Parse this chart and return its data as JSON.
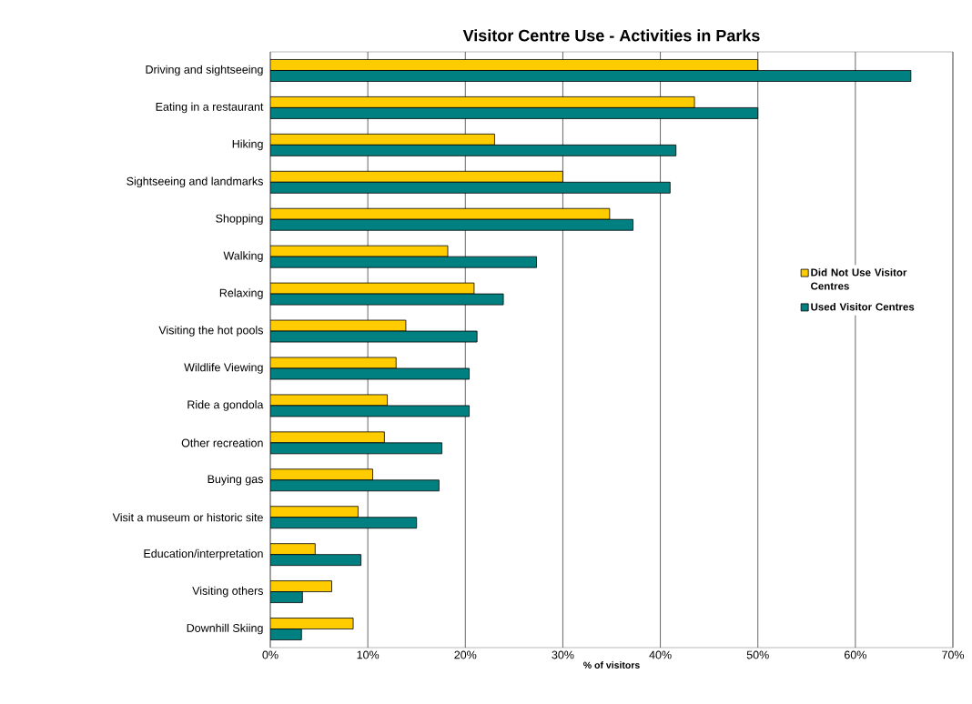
{
  "chart_data": {
    "type": "bar",
    "orientation": "horizontal",
    "title": "Visitor Centre Use - Activities in Parks",
    "xlabel": "% of visitors",
    "categories": [
      "Driving and sightseeing",
      "Eating in a restaurant",
      "Hiking",
      "Sightseeing and landmarks",
      "Shopping",
      "Walking",
      "Relaxing",
      "Visiting the hot pools",
      "Wildlife Viewing",
      "Ride a gondola",
      "Other recreation",
      "Buying gas",
      "Visit a museum or historic site",
      "Education/interpretation",
      "Visiting others",
      "Downhill Skiing"
    ],
    "series": [
      {
        "name": "Did Not Use Visitor Centres",
        "color": "#ffcc00",
        "values": [
          50.0,
          43.5,
          23.0,
          30.0,
          34.8,
          18.2,
          20.9,
          13.9,
          12.9,
          12.0,
          11.7,
          10.5,
          9.0,
          4.6,
          6.3,
          8.5
        ]
      },
      {
        "name": "Used Visitor Centres",
        "color": "#008080",
        "values": [
          65.7,
          50.0,
          41.6,
          41.0,
          37.2,
          27.3,
          23.9,
          21.2,
          20.4,
          20.4,
          17.6,
          17.3,
          15.0,
          9.3,
          3.3,
          3.2
        ]
      }
    ],
    "xlim": [
      0,
      70
    ],
    "xticks": [
      {
        "value": 0,
        "label": "0%"
      },
      {
        "value": 10,
        "label": "10%"
      },
      {
        "value": 20,
        "label": "20%"
      },
      {
        "value": 30,
        "label": "30%"
      },
      {
        "value": 40,
        "label": "40%"
      },
      {
        "value": 50,
        "label": "50%"
      },
      {
        "value": 60,
        "label": "60%"
      },
      {
        "value": 70,
        "label": "70%"
      }
    ],
    "grid": "x",
    "legend": "right"
  }
}
